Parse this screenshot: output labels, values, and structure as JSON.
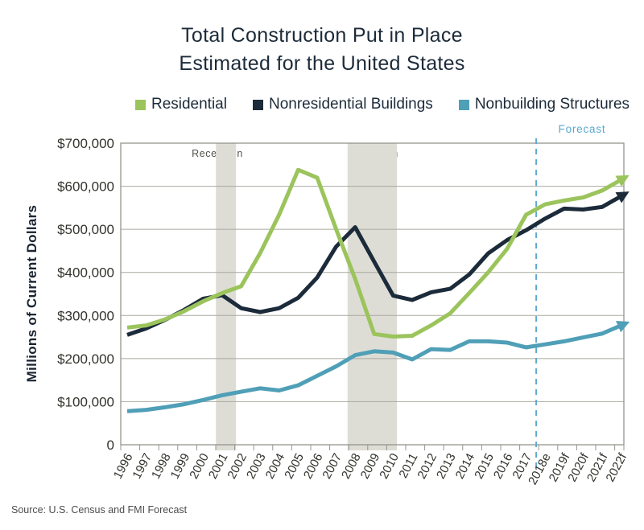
{
  "title": {
    "line1": "Total Construction Put in Place",
    "line2": "Estimated for the United States"
  },
  "legend": {
    "items": [
      {
        "label": "Residential",
        "color": "#9bc45c"
      },
      {
        "label": "Nonresidential Buildings",
        "color": "#1c2b3a"
      },
      {
        "label": "Nonbuilding Structures",
        "color": "#4f9fb7"
      }
    ]
  },
  "annotations": {
    "forecast": "Forecast",
    "recession": "Recession",
    "source": "Source: U.S. Census and FMI Forecast"
  },
  "y_axis": {
    "title": "Millions of Current Dollars",
    "tick_labels": [
      "0",
      "$100,000",
      "$200,000",
      "$300,000",
      "$400,000",
      "$500,000",
      "$600,000",
      "$700,000"
    ]
  },
  "chart_data": {
    "type": "line",
    "title": "Total Construction Put in Place Estimated for the United States",
    "ylabel": "Millions of Current Dollars",
    "ylim": [
      0,
      700000
    ],
    "ytick_step": 100000,
    "grid": true,
    "legend_position": "top",
    "categories": [
      "1996",
      "1997",
      "1998",
      "1999",
      "2000",
      "2001",
      "2002",
      "2003",
      "2004",
      "2005",
      "2006",
      "2007",
      "2008",
      "2009",
      "2010",
      "2011",
      "2012",
      "2013",
      "2014",
      "2015",
      "2016",
      "2017",
      "2018e",
      "2019f",
      "2020f",
      "2021f",
      "2022f"
    ],
    "series": [
      {
        "name": "Residential",
        "color": "#9bc45c",
        "values": [
          272000,
          277000,
          291000,
          310000,
          333000,
          352000,
          368000,
          445000,
          534000,
          638000,
          620000,
          500000,
          385000,
          257000,
          251000,
          253000,
          277000,
          305000,
          352000,
          400000,
          455000,
          534000,
          558000,
          567000,
          574000,
          590000,
          615000
        ]
      },
      {
        "name": "Nonresidential Buildings",
        "color": "#1c2b3a",
        "values": [
          255000,
          270000,
          290000,
          313000,
          339000,
          347000,
          317000,
          308000,
          317000,
          341000,
          388000,
          460000,
          505000,
          425000,
          346000,
          336000,
          354000,
          362000,
          395000,
          444000,
          475000,
          498000,
          525000,
          548000,
          546000,
          552000,
          577000
        ]
      },
      {
        "name": "Nonbuilding Structures",
        "color": "#4f9fb7",
        "values": [
          78000,
          81000,
          87000,
          94000,
          104000,
          115000,
          123000,
          131000,
          126000,
          138000,
          160000,
          182000,
          208000,
          217000,
          214000,
          198000,
          222000,
          220000,
          240000,
          240000,
          237000,
          226000,
          233000,
          240000,
          249000,
          258000,
          277000
        ]
      }
    ],
    "recession_bands": [
      {
        "from_index": 4.67,
        "to_index": 5.73
      },
      {
        "from_index": 11.6,
        "to_index": 14.2
      }
    ],
    "forecast_line_index": 21.53
  }
}
